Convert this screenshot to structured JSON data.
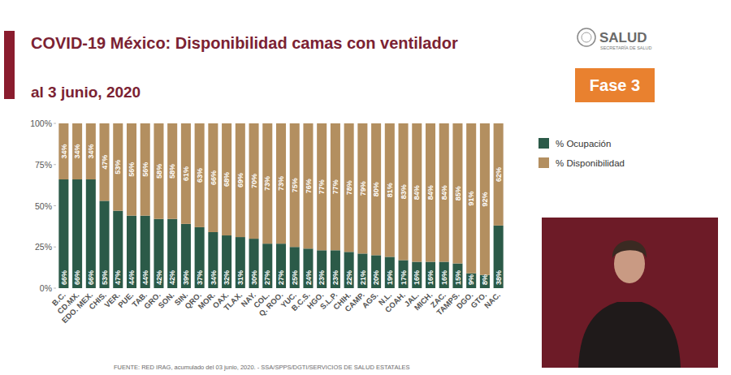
{
  "chart_data": {
    "type": "bar",
    "title": "COVID-19 México: Disponibilidad camas con ventilador",
    "subtitle": "al 3 junio, 2020",
    "categories": [
      "B.C.",
      "CD.MX.",
      "EDO. MEX.",
      "CHIS.",
      "VER.",
      "PUE.",
      "TAB.",
      "GRO.",
      "SON.",
      "SIN.",
      "QRO.",
      "MOR.",
      "OAX.",
      "TLAX.",
      "NAY.",
      "COL.",
      "Q. ROO.",
      "YUC.",
      "B.C.S.",
      "HGO.",
      "S.L.P.",
      "CHIH.",
      "CAMP.",
      "AGS.",
      "N.L.",
      "COAH.",
      "JAL.",
      "MICH.",
      "ZAC.",
      "TAMPS.",
      "DGO.",
      "GTO.",
      "NAC."
    ],
    "series": [
      {
        "name": "% Ocupación",
        "color": "#2b5a48",
        "values": [
          66,
          66,
          66,
          53,
          47,
          44,
          44,
          42,
          42,
          39,
          37,
          34,
          32,
          31,
          30,
          27,
          27,
          25,
          24,
          23,
          23,
          22,
          21,
          20,
          19,
          17,
          16,
          16,
          16,
          15,
          9,
          8,
          38
        ],
        "value_labels": [
          "66%",
          "66%",
          "66%",
          "53%",
          "47%",
          "44%",
          "44%",
          "42%",
          "42%",
          "39%",
          "37%",
          "34%",
          "32%",
          "31%",
          "30%",
          "27%",
          "27%",
          "25%",
          "24%",
          "23%",
          "23%",
          "22%",
          "21%",
          "20%",
          "19%",
          "17%",
          "16%",
          "16%",
          "16%",
          "15%",
          "9%",
          "8%",
          "38%"
        ]
      },
      {
        "name": "% Disponibilidad",
        "color": "#b38f60",
        "values": [
          34,
          34,
          34,
          47,
          53,
          56,
          56,
          58,
          58,
          61,
          63,
          66,
          68,
          69,
          70,
          73,
          73,
          75,
          76,
          77,
          77,
          78,
          79,
          80,
          81,
          83,
          84,
          84,
          84,
          85,
          91,
          92,
          62
        ],
        "value_labels": [
          "34%",
          "34%",
          "34%",
          "47%",
          "53%",
          "56%",
          "56%",
          "58%",
          "58%",
          "61%",
          "63%",
          "66%",
          "68%",
          "69%",
          "70%",
          "73%",
          "73%",
          "75%",
          "76%",
          "77%",
          "77%",
          "78%",
          "79%",
          "80%",
          "81%",
          "83%",
          "84%",
          "84%",
          "84%",
          "85%",
          "91%",
          "92%",
          "62%"
        ]
      }
    ],
    "stacked": true,
    "data_labels": true,
    "ylim": [
      0,
      100
    ],
    "yticks": [
      {
        "value": 0,
        "label": "0%"
      },
      {
        "value": 25,
        "label": "25%"
      },
      {
        "value": 50,
        "label": "50%"
      },
      {
        "value": 75,
        "label": "75%"
      },
      {
        "value": 100,
        "label": "100%"
      }
    ],
    "grid": false,
    "legend": "right"
  },
  "header": {
    "logo": "SALUD",
    "logo_subtitle": "SECRETARÍA DE SALUD",
    "badge": "Fase 3"
  },
  "footer": {
    "source": "FUENTE: RED IRAG, acumulado del 03 junio, 2020. - SSA/SPPS/DGTI/SERVICIOS DE SALUD ESTATALES"
  }
}
